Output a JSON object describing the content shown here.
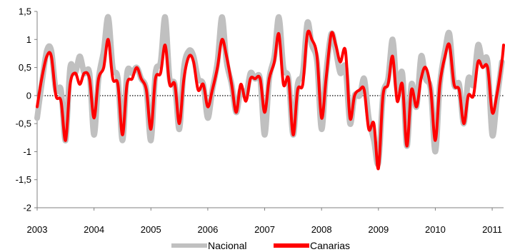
{
  "chart_data": {
    "type": "line",
    "xlim": [
      2003.0,
      2011.2
    ],
    "ylim": [
      -2,
      1.5
    ],
    "y_ticks": [
      "1,5",
      "1",
      "0,5",
      "0",
      "-0,5",
      "-1",
      "-1,5",
      "-2"
    ],
    "y_tick_values": [
      1.5,
      1,
      0.5,
      0,
      -0.5,
      -1,
      -1.5,
      -2
    ],
    "x_ticks": [
      "2003",
      "2004",
      "2005",
      "2006",
      "2007",
      "2008",
      "2009",
      "2010",
      "2011"
    ],
    "x_tick_values": [
      2003,
      2004,
      2005,
      2006,
      2007,
      2008,
      2009,
      2010,
      2011
    ],
    "grid": "none",
    "zero_line": "dotted",
    "legend_position": "bottom",
    "series": [
      {
        "name": "Nacional",
        "color": "#c0c0c0",
        "x": [
          2003.0,
          2003.08,
          2003.17,
          2003.25,
          2003.33,
          2003.42,
          2003.5,
          2003.58,
          2003.67,
          2003.75,
          2003.83,
          2003.92,
          2004.0,
          2004.08,
          2004.17,
          2004.25,
          2004.33,
          2004.42,
          2004.5,
          2004.58,
          2004.67,
          2004.75,
          2004.83,
          2004.92,
          2005.0,
          2005.08,
          2005.17,
          2005.25,
          2005.33,
          2005.42,
          2005.5,
          2005.58,
          2005.67,
          2005.75,
          2005.83,
          2005.92,
          2006.0,
          2006.08,
          2006.17,
          2006.25,
          2006.33,
          2006.42,
          2006.5,
          2006.58,
          2006.67,
          2006.75,
          2006.83,
          2006.92,
          2007.0,
          2007.08,
          2007.17,
          2007.25,
          2007.33,
          2007.42,
          2007.5,
          2007.58,
          2007.67,
          2007.75,
          2007.83,
          2007.92,
          2008.0,
          2008.08,
          2008.17,
          2008.25,
          2008.33,
          2008.42,
          2008.5,
          2008.58,
          2008.67,
          2008.75,
          2008.83,
          2008.92,
          2009.0,
          2009.08,
          2009.17,
          2009.25,
          2009.33,
          2009.42,
          2009.5,
          2009.58,
          2009.67,
          2009.75,
          2009.83,
          2009.92,
          2010.0,
          2010.08,
          2010.17,
          2010.25,
          2010.33,
          2010.42,
          2010.5,
          2010.58,
          2010.67,
          2010.75,
          2010.83,
          2010.92,
          2011.0,
          2011.08,
          2011.17
        ],
        "values": [
          -0.4,
          0.2,
          0.8,
          0.8,
          0.1,
          0.1,
          -0.8,
          0.5,
          0.4,
          0.7,
          0.4,
          0.4,
          -0.7,
          0.3,
          0.8,
          1.4,
          0.5,
          0.3,
          -0.8,
          0.4,
          0.4,
          0.5,
          0.3,
          0.1,
          -0.8,
          0.4,
          0.6,
          1.4,
          0.3,
          0.2,
          -0.6,
          0.5,
          0.8,
          0.7,
          0.3,
          0.2,
          -0.4,
          0.1,
          0.6,
          1.4,
          0.6,
          0.2,
          -0.3,
          0.1,
          0.0,
          0.4,
          0.3,
          0.3,
          -0.7,
          0.3,
          0.7,
          1.4,
          0.5,
          0.3,
          -0.7,
          0.2,
          0.4,
          1.3,
          0.9,
          0.6,
          -0.6,
          0.4,
          1.1,
          0.8,
          0.4,
          0.5,
          -0.5,
          0.0,
          0.0,
          0.3,
          -0.4,
          -0.8,
          -1.2,
          0.0,
          0.3,
          1.0,
          0.1,
          0.4,
          -0.9,
          0.2,
          -0.2,
          0.7,
          0.3,
          0.1,
          -1.0,
          0.2,
          0.8,
          1.1,
          0.2,
          0.2,
          -0.5,
          0.3,
          0.2,
          0.9,
          0.6,
          0.6,
          -0.7,
          -0.1,
          0.6
        ],
        "width": 8
      },
      {
        "name": "Canarias",
        "color": "#ff0000",
        "x": [
          2003.0,
          2003.08,
          2003.17,
          2003.25,
          2003.33,
          2003.42,
          2003.5,
          2003.58,
          2003.67,
          2003.75,
          2003.83,
          2003.92,
          2004.0,
          2004.08,
          2004.17,
          2004.25,
          2004.33,
          2004.42,
          2004.5,
          2004.58,
          2004.67,
          2004.75,
          2004.83,
          2004.92,
          2005.0,
          2005.08,
          2005.17,
          2005.25,
          2005.33,
          2005.42,
          2005.5,
          2005.58,
          2005.67,
          2005.75,
          2005.83,
          2005.92,
          2006.0,
          2006.08,
          2006.17,
          2006.25,
          2006.33,
          2006.42,
          2006.5,
          2006.58,
          2006.67,
          2006.75,
          2006.83,
          2006.92,
          2007.0,
          2007.08,
          2007.17,
          2007.25,
          2007.33,
          2007.42,
          2007.5,
          2007.58,
          2007.67,
          2007.75,
          2007.83,
          2007.92,
          2008.0,
          2008.08,
          2008.17,
          2008.25,
          2008.33,
          2008.42,
          2008.5,
          2008.58,
          2008.67,
          2008.75,
          2008.83,
          2008.92,
          2009.0,
          2009.08,
          2009.17,
          2009.25,
          2009.33,
          2009.42,
          2009.5,
          2009.58,
          2009.67,
          2009.75,
          2009.83,
          2009.92,
          2010.0,
          2010.08,
          2010.17,
          2010.25,
          2010.33,
          2010.42,
          2010.5,
          2010.58,
          2010.67,
          2010.75,
          2010.83,
          2010.92,
          2011.0,
          2011.08,
          2011.17,
          2011.2
        ],
        "values": [
          -0.2,
          0.3,
          0.7,
          0.7,
          0.0,
          -0.1,
          -0.8,
          0.2,
          0.4,
          0.2,
          0.4,
          0.3,
          -0.4,
          0.3,
          0.5,
          1.0,
          0.3,
          0.2,
          -0.7,
          0.2,
          0.3,
          0.5,
          0.3,
          0.1,
          -0.6,
          0.3,
          0.4,
          0.9,
          0.2,
          0.2,
          -0.5,
          0.3,
          0.7,
          0.6,
          0.1,
          0.2,
          -0.2,
          0.1,
          0.5,
          1.0,
          0.7,
          0.2,
          -0.3,
          0.2,
          -0.1,
          0.3,
          0.3,
          0.3,
          -0.3,
          0.3,
          0.6,
          1.1,
          0.2,
          0.3,
          -0.7,
          0.1,
          0.2,
          1.1,
          1.0,
          0.7,
          -0.4,
          0.3,
          1.1,
          0.9,
          0.6,
          0.8,
          -0.4,
          0.0,
          0.1,
          0.1,
          -0.6,
          -0.5,
          -1.3,
          0.0,
          0.2,
          0.7,
          -0.1,
          0.2,
          -0.9,
          0.1,
          -0.2,
          0.3,
          0.5,
          0.1,
          -0.8,
          0.2,
          0.7,
          0.9,
          0.2,
          0.1,
          -0.5,
          0.0,
          0.0,
          0.6,
          0.5,
          0.5,
          -0.3,
          0.0,
          0.6,
          0.9
        ],
        "width": 4
      }
    ]
  }
}
